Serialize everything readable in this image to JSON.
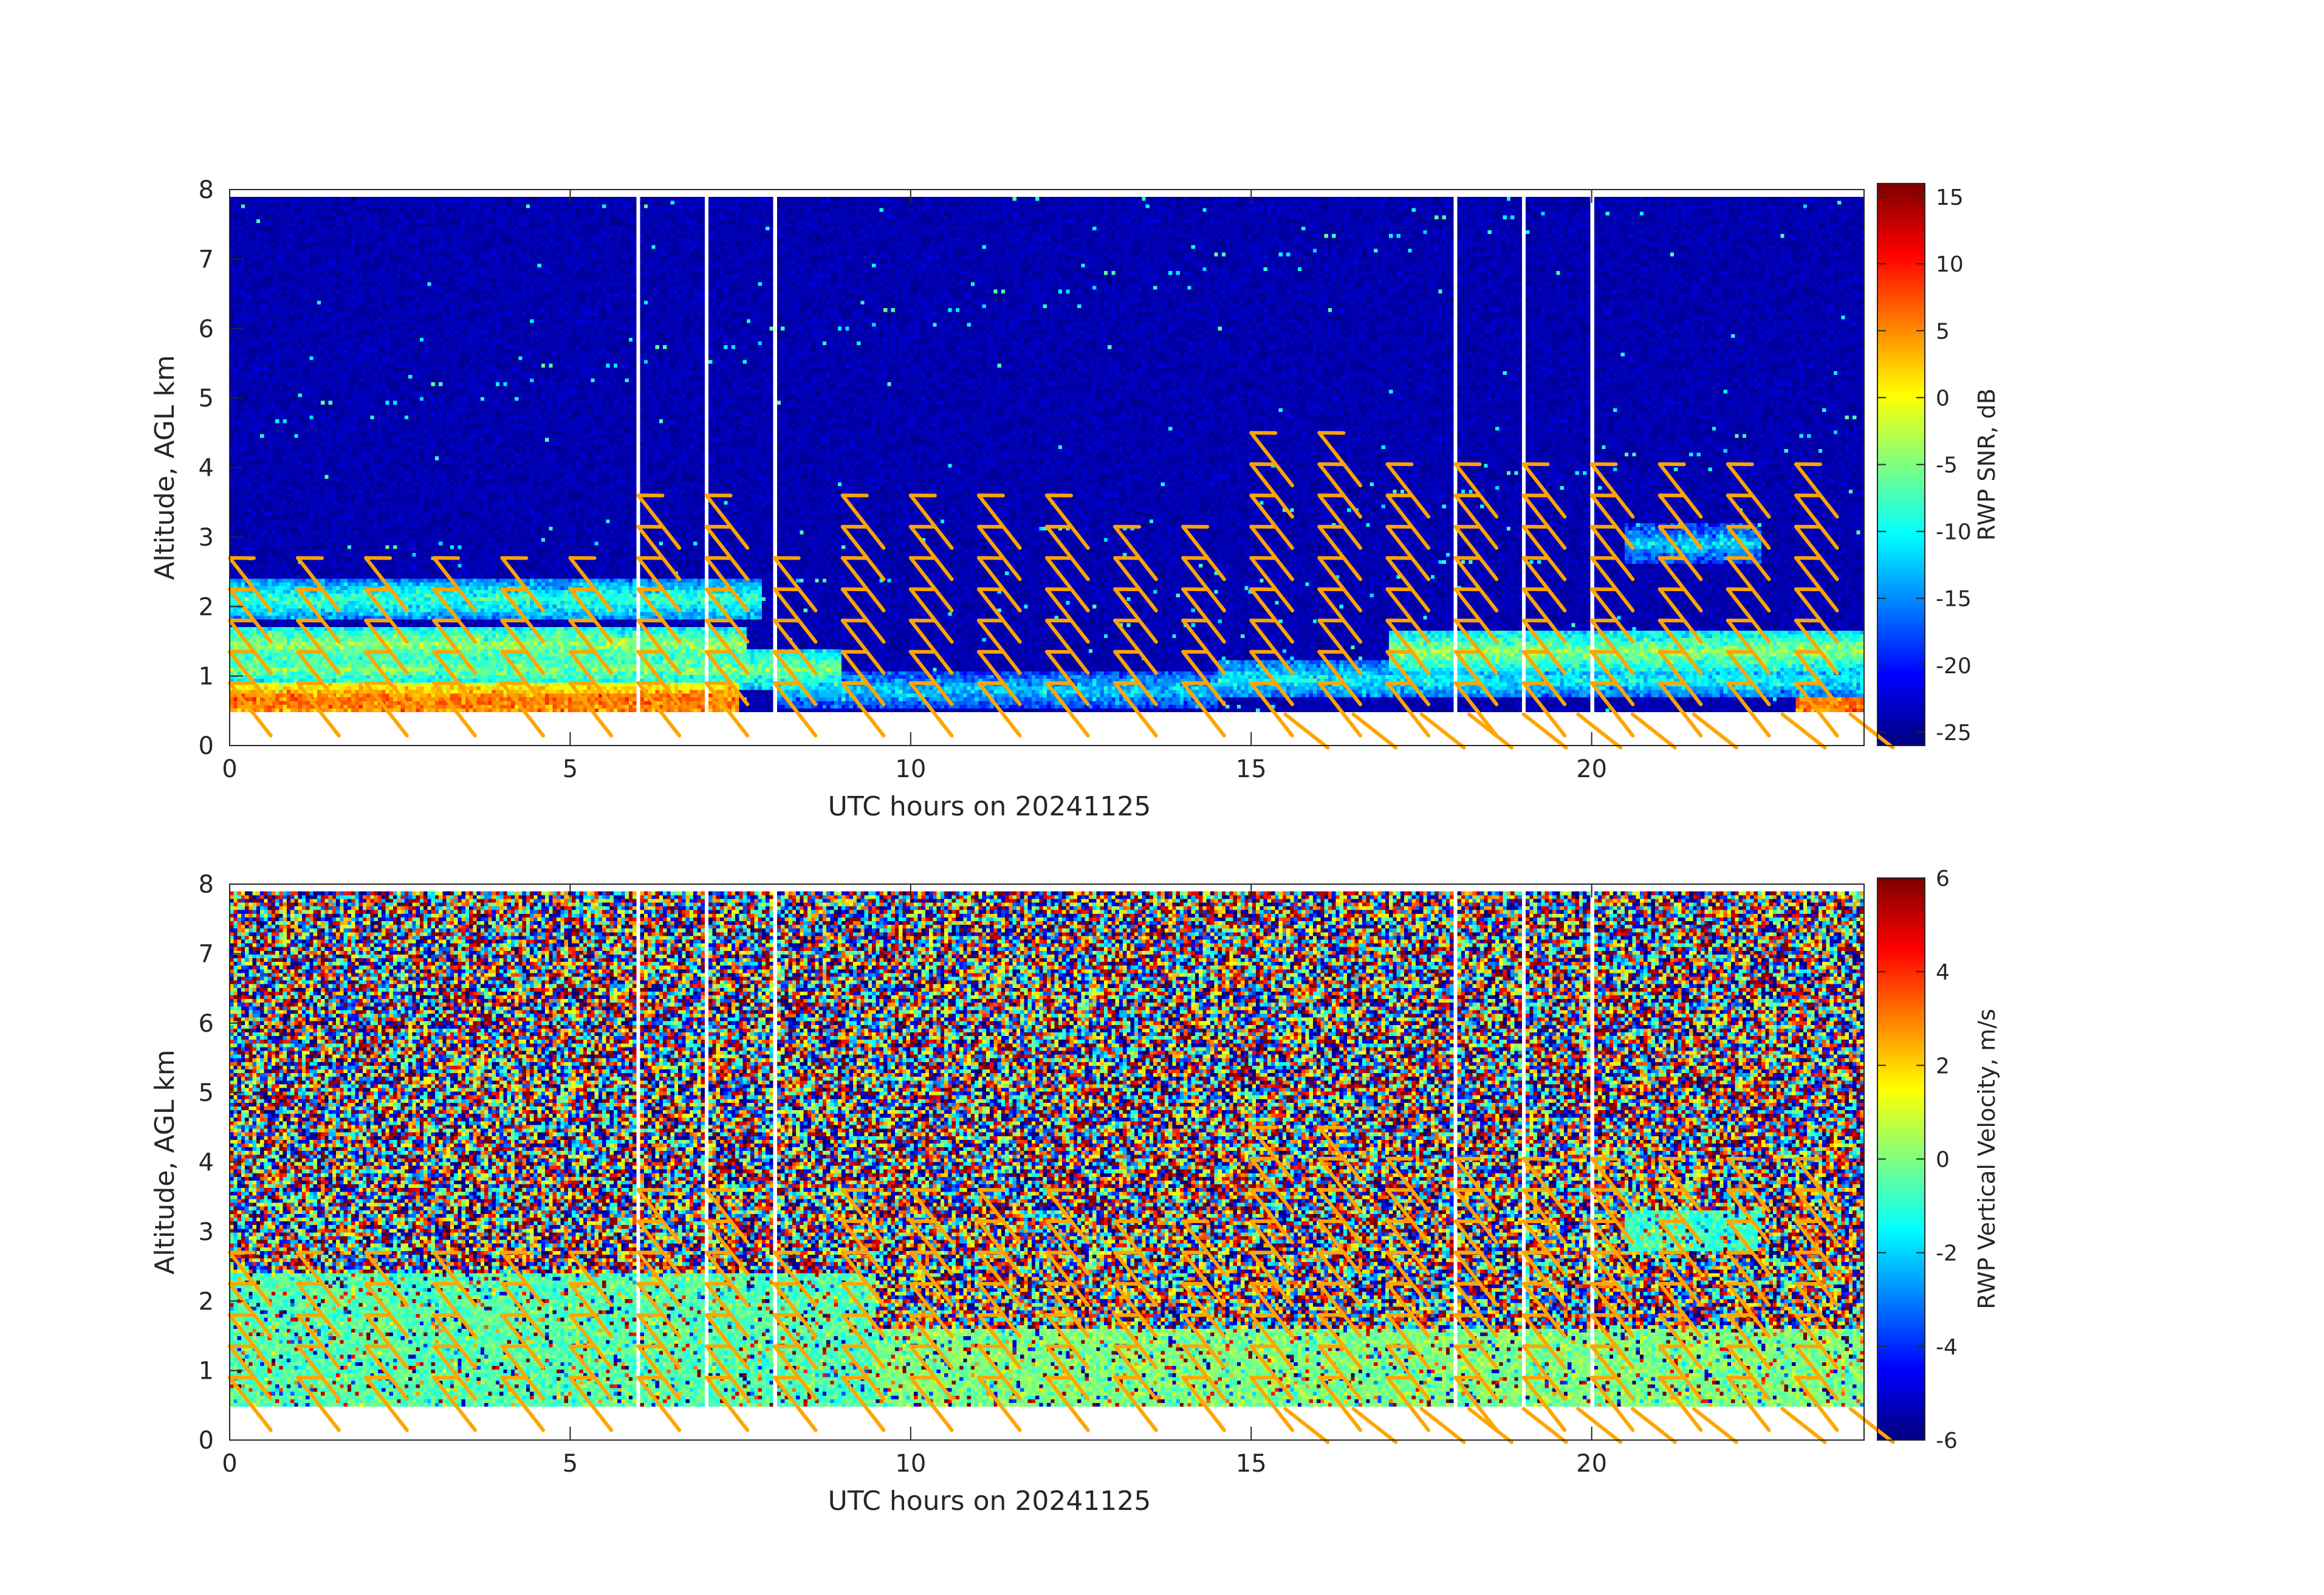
{
  "figure": {
    "date": "20241125"
  },
  "chart_data": [
    {
      "type": "heatmap",
      "name": "snr-panel",
      "xlabel": "UTC hours on 20241125",
      "ylabel": "Altitude, AGL km",
      "xlim": [
        0,
        24
      ],
      "ylim": [
        0,
        8
      ],
      "xticks": [
        0,
        5,
        10,
        15,
        20
      ],
      "yticks": [
        0,
        1,
        2,
        3,
        4,
        5,
        6,
        7,
        8
      ],
      "colorbar": {
        "label": "RWP SNR, dB",
        "range": [
          -26,
          16
        ],
        "ticks": [
          15,
          10,
          5,
          0,
          -5,
          -10,
          -15,
          -20,
          -25
        ],
        "colormap": "jet"
      },
      "data_altitude_range_km": [
        0.5,
        7.9
      ],
      "layers": [
        {
          "t0": 0,
          "t1": 7.5,
          "alt": 0.65,
          "snr": 6
        },
        {
          "t0": 0,
          "t1": 7.6,
          "alt": 1.45,
          "snr": -4
        },
        {
          "t0": 0,
          "t1": 7.8,
          "alt": 2.1,
          "snr": -8
        },
        {
          "t0": 0,
          "t1": 9.0,
          "alt": 1.1,
          "snr": -5
        },
        {
          "t0": 8.0,
          "t1": 14.5,
          "alt": 0.8,
          "snr": -12
        },
        {
          "t0": 14.5,
          "t1": 24,
          "alt": 0.95,
          "snr": -10
        },
        {
          "t0": 17.0,
          "t1": 24,
          "alt": 1.35,
          "snr": -4
        },
        {
          "t0": 20.5,
          "t1": 22.5,
          "alt": 2.9,
          "snr": -12
        }
      ],
      "background_snr": -24
    },
    {
      "type": "heatmap",
      "name": "vertical-velocity-panel",
      "xlabel": "UTC hours on 20241125",
      "ylabel": "Altitude, AGL km",
      "xlim": [
        0,
        24
      ],
      "ylim": [
        0,
        8
      ],
      "xticks": [
        0,
        5,
        10,
        15,
        20
      ],
      "yticks": [
        0,
        1,
        2,
        3,
        4,
        5,
        6,
        7,
        8
      ],
      "colorbar": {
        "label": "RWP Vertical Velocity, m/s",
        "range": [
          -6,
          6
        ],
        "ticks": [
          6,
          4,
          2,
          0,
          -2,
          -4,
          -6
        ],
        "colormap": "jet"
      },
      "data_altitude_range_km": [
        0.5,
        7.9
      ],
      "coherent_regions": [
        {
          "t0": 0,
          "t1": 9.5,
          "a0": 0.5,
          "a1": 2.4,
          "w": -0.5
        },
        {
          "t0": 9.5,
          "t1": 24,
          "a0": 0.5,
          "a1": 1.6,
          "w": 0.0
        },
        {
          "t0": 20.5,
          "t1": 22.5,
          "a0": 2.7,
          "a1": 3.3,
          "w": -0.8
        }
      ]
    }
  ],
  "wind_barbs": {
    "color": "#ffa500",
    "times_h": [
      0,
      1,
      2,
      3,
      4,
      5,
      6,
      7,
      8,
      9,
      10,
      11,
      12,
      13,
      14,
      15,
      16,
      17,
      18,
      19,
      20,
      21,
      22,
      23
    ],
    "top_altitude_km": [
      3.0,
      2.9,
      2.9,
      2.9,
      2.9,
      2.9,
      4.0,
      4.0,
      2.9,
      3.9,
      4.0,
      4.0,
      3.6,
      3.5,
      3.5,
      4.5,
      4.5,
      4.4,
      4.1,
      4.1,
      4.1,
      4.2,
      4.3,
      4.4
    ],
    "surface_barbs": [
      {
        "t": 15.5,
        "alt": 0.45
      },
      {
        "t": 16.5,
        "alt": 0.45
      },
      {
        "t": 17.5,
        "alt": 0.45
      },
      {
        "t": 18.2,
        "alt": 0.45
      },
      {
        "t": 19.0,
        "alt": 0.45
      },
      {
        "t": 19.8,
        "alt": 0.45
      },
      {
        "t": 20.6,
        "alt": 0.45
      },
      {
        "t": 21.5,
        "alt": 0.45
      },
      {
        "t": 22.8,
        "alt": 0.45
      },
      {
        "t": 23.8,
        "alt": 0.45
      }
    ]
  }
}
